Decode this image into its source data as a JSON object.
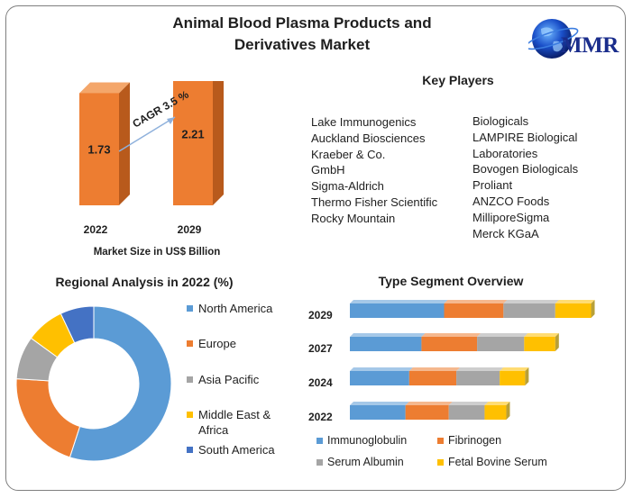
{
  "title_line1": "Animal Blood Plasma Products and",
  "title_line2": "Derivatives Market",
  "logo_text": "MMR",
  "colors": {
    "orange_front": "#ed7d31",
    "orange_side": "#b85a1c",
    "orange_top": "#f4a66a",
    "north_america": "#5b9bd5",
    "europe": "#ed7d31",
    "asia_pacific": "#a5a5a5",
    "middle_east": "#ffc000",
    "south_america": "#4472c4",
    "cap": "#b8a038"
  },
  "key_players": {
    "title": "Key Players",
    "left": [
      "Lake Immunogenics",
      "Auckland Biosciences",
      "Kraeber & Co.",
      "GmbH",
      "Sigma-Aldrich",
      "Thermo Fisher Scientific",
      "Rocky Mountain"
    ],
    "right": [
      "Biologicals",
      "LAMPIRE Biological",
      "Laboratories",
      "Bovogen Biologicals",
      "Proliant",
      "ANZCO Foods",
      "MilliporeSigma",
      "Merck KGaA"
    ]
  },
  "chart_data": [
    {
      "type": "bar",
      "categories": [
        "2022",
        "2029"
      ],
      "values": [
        1.73,
        2.21
      ],
      "xlabel": "Market Size in US$ Billion",
      "annotation": "CAGR 3.5 %"
    },
    {
      "type": "pie",
      "title": "Regional Analysis in 2022 (%)",
      "categories": [
        "North America",
        "Europe",
        "Asia Pacific",
        "Middle East & Africa",
        "South America"
      ],
      "legend_lines": [
        [
          "North America"
        ],
        [
          "Europe"
        ],
        [
          "Asia Pacific"
        ],
        [
          "Middle East &",
          "Africa"
        ],
        [
          "South America"
        ]
      ],
      "values": [
        55,
        21,
        9,
        8,
        7
      ],
      "colors": [
        "#5b9bd5",
        "#ed7d31",
        "#a5a5a5",
        "#ffc000",
        "#4472c4"
      ],
      "legend": "right"
    },
    {
      "type": "bar",
      "orientation": "horizontal",
      "stacked": true,
      "title": "Type Segment Overview",
      "categories": [
        "2029",
        "2027",
        "2024",
        "2022"
      ],
      "series": [
        {
          "name": "Immunoglobulin",
          "color": "#5b9bd5",
          "values": [
            100,
            76,
            63,
            59
          ]
        },
        {
          "name": "Fibrinogen",
          "color": "#ed7d31",
          "values": [
            63,
            59,
            50,
            46
          ]
        },
        {
          "name": "Serum Albumin",
          "color": "#a5a5a5",
          "values": [
            55,
            50,
            46,
            38
          ]
        },
        {
          "name": "Fetal Bovine Serum",
          "color": "#ffc000",
          "values": [
            38,
            33,
            27,
            23
          ]
        }
      ],
      "legend": "bottom"
    }
  ]
}
